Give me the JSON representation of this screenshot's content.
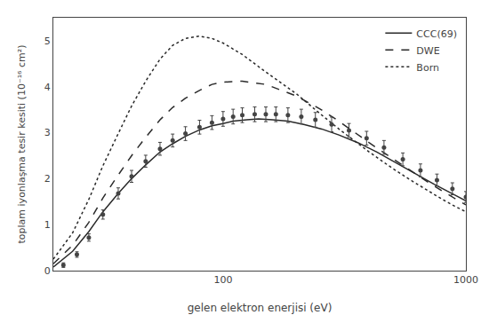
{
  "chart_data": {
    "type": "line",
    "xlabel": "gelen elektron enerjisi (eV)",
    "ylabel": "toplam iyonlaşma tesir kesiti (10⁻¹⁶ cm²)",
    "log": "x",
    "xlim": [
      20,
      1000
    ],
    "xticks": [
      100,
      1000
    ],
    "ylim": [
      0,
      5.5
    ],
    "yticks": [
      0,
      1,
      2,
      3,
      4,
      5
    ],
    "grid": false,
    "legend": "upper right",
    "series": [
      {
        "name": "CCC(69)",
        "type": "line",
        "color": "#2a2a2a",
        "line_style": "solid",
        "x": [
          20,
          24,
          28,
          32,
          37,
          42,
          48,
          55,
          62,
          70,
          80,
          90,
          100,
          110,
          125,
          140,
          160,
          185,
          215,
          255,
          300,
          360,
          430,
          520,
          620,
          740,
          880,
          1000
        ],
        "values": [
          0.08,
          0.42,
          0.85,
          1.28,
          1.68,
          2.0,
          2.3,
          2.58,
          2.76,
          2.92,
          3.06,
          3.15,
          3.2,
          3.25,
          3.28,
          3.3,
          3.28,
          3.25,
          3.18,
          3.08,
          2.95,
          2.78,
          2.58,
          2.33,
          2.1,
          1.88,
          1.67,
          1.52
        ]
      },
      {
        "name": "DWE",
        "type": "line",
        "color": "#2a2a2a",
        "line_style": "dashed",
        "x": [
          20,
          24,
          28,
          32,
          37,
          42,
          48,
          55,
          62,
          70,
          80,
          90,
          100,
          120,
          150,
          200,
          250,
          300,
          400,
          500,
          600,
          700,
          800,
          900,
          1000
        ],
        "values": [
          0.15,
          0.55,
          1.05,
          1.58,
          2.08,
          2.5,
          2.9,
          3.28,
          3.55,
          3.75,
          3.92,
          4.05,
          4.1,
          4.12,
          4.05,
          3.8,
          3.52,
          3.25,
          2.78,
          2.44,
          2.15,
          1.92,
          1.73,
          1.57,
          1.43
        ]
      },
      {
        "name": "Born",
        "type": "line",
        "color": "#2a2a2a",
        "line_style": "dotted",
        "x": [
          20,
          24,
          28,
          32,
          37,
          42,
          48,
          55,
          62,
          70,
          80,
          90,
          100,
          120,
          150,
          200,
          250,
          300,
          400,
          500,
          600,
          700,
          800,
          900,
          1000
        ],
        "values": [
          0.25,
          0.82,
          1.55,
          2.28,
          2.98,
          3.58,
          4.12,
          4.6,
          4.9,
          5.05,
          5.1,
          5.05,
          4.95,
          4.7,
          4.32,
          3.85,
          3.42,
          3.08,
          2.58,
          2.22,
          1.95,
          1.73,
          1.55,
          1.4,
          1.28
        ]
      },
      {
        "type": "scatter",
        "color": "#444444",
        "marker": "circle",
        "line_style": "none",
        "x": [
          22,
          25,
          28,
          32,
          37,
          42,
          48,
          55,
          62,
          70,
          80,
          90,
          100,
          110,
          120,
          135,
          150,
          165,
          185,
          210,
          240,
          280,
          330,
          390,
          460,
          550,
          650,
          760,
          880,
          1000
        ],
        "values": [
          0.12,
          0.35,
          0.72,
          1.22,
          1.68,
          2.05,
          2.38,
          2.65,
          2.83,
          2.98,
          3.12,
          3.22,
          3.3,
          3.35,
          3.38,
          3.4,
          3.4,
          3.4,
          3.38,
          3.35,
          3.28,
          3.18,
          3.05,
          2.88,
          2.68,
          2.42,
          2.18,
          1.97,
          1.78,
          1.6
        ],
        "errors": [
          0.05,
          0.06,
          0.08,
          0.1,
          0.12,
          0.13,
          0.13,
          0.14,
          0.14,
          0.15,
          0.15,
          0.15,
          0.16,
          0.16,
          0.16,
          0.16,
          0.16,
          0.16,
          0.16,
          0.16,
          0.16,
          0.16,
          0.15,
          0.15,
          0.15,
          0.14,
          0.14,
          0.13,
          0.13,
          0.12
        ]
      }
    ]
  }
}
